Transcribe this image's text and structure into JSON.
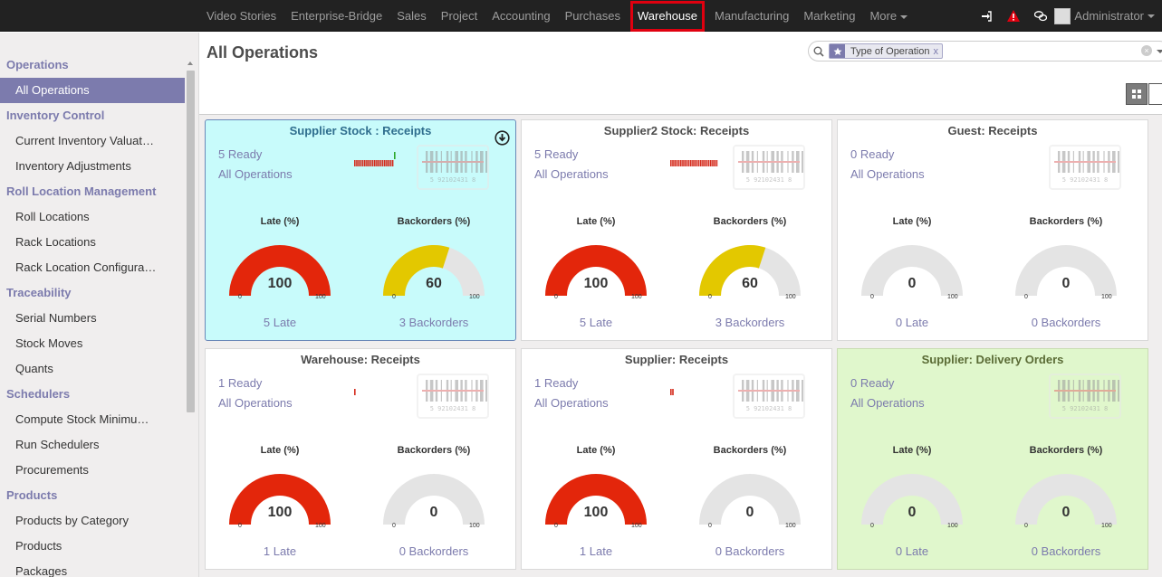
{
  "topbar": {
    "menu": [
      "Video Stories",
      "Enterprise-Bridge",
      "Sales",
      "Project",
      "Accounting",
      "Purchases",
      "Warehouse",
      "Manufacturing",
      "Marketing",
      "More"
    ],
    "active": "Warehouse",
    "user_name": "Administrator",
    "icons": [
      "sign-in-icon",
      "warning-icon",
      "chat-icon"
    ],
    "warning_color": "#e0000f"
  },
  "sidebar": {
    "sections": [
      {
        "title": "Operations",
        "items": [
          "All Operations"
        ]
      },
      {
        "title": "Inventory Control",
        "items": [
          "Current Inventory Valuat…",
          "Inventory Adjustments"
        ]
      },
      {
        "title": "Roll Location Management",
        "items": [
          "Roll Locations",
          "Rack Locations",
          "Rack Location Configura…"
        ]
      },
      {
        "title": "Traceability",
        "items": [
          "Serial Numbers",
          "Stock Moves",
          "Quants"
        ]
      },
      {
        "title": "Schedulers",
        "items": [
          "Compute Stock Minimu…",
          "Run Schedulers",
          "Procurements"
        ]
      },
      {
        "title": "Products",
        "items": [
          "Products by Category",
          "Products",
          "Packages"
        ]
      }
    ],
    "active_item": "All Operations"
  },
  "control_panel": {
    "title": "All Operations",
    "search_facet": "Type of Operation",
    "facet_remove": "x",
    "clear": "×"
  },
  "gauge_labels": {
    "late": "Late (%)",
    "backorders": "Backorders (%)",
    "min": "0",
    "max": "100"
  },
  "cards": [
    {
      "title": "Supplier Stock : Receipts",
      "ready": "5 Ready",
      "all_ops": "All Operations",
      "late_pct": 100,
      "back_pct": 60,
      "late_link": "5 Late",
      "back_link": "3 Backorders",
      "style": "blue",
      "spark": [
        1,
        1,
        1,
        1,
        1,
        1,
        1,
        1,
        1,
        1,
        1,
        1,
        1,
        1,
        1,
        1,
        1,
        1,
        1,
        1,
        2
      ],
      "download": true
    },
    {
      "title": "Supplier2 Stock: Receipts",
      "ready": "5 Ready",
      "all_ops": "All Operations",
      "late_pct": 100,
      "back_pct": 60,
      "late_link": "5 Late",
      "back_link": "3 Backorders",
      "style": "white",
      "spark": [
        1,
        1,
        1,
        1,
        1,
        1,
        1,
        1,
        1,
        1,
        1,
        1,
        1,
        1,
        1,
        1,
        1,
        1,
        1,
        1,
        1,
        1,
        1,
        1
      ],
      "download": false
    },
    {
      "title": "Guest: Receipts",
      "ready": "0 Ready",
      "all_ops": "All Operations",
      "late_pct": 0,
      "back_pct": 0,
      "late_link": "0 Late",
      "back_link": "0 Backorders",
      "style": "white",
      "spark": [],
      "download": false
    },
    {
      "title": "Warehouse: Receipts",
      "ready": "1 Ready",
      "all_ops": "All Operations",
      "late_pct": 100,
      "back_pct": 0,
      "late_link": "1 Late",
      "back_link": "0 Backorders",
      "style": "white",
      "spark": [
        1
      ],
      "download": false
    },
    {
      "title": "Supplier: Receipts",
      "ready": "1 Ready",
      "all_ops": "All Operations",
      "late_pct": 100,
      "back_pct": 0,
      "late_link": "1 Late",
      "back_link": "0 Backorders",
      "style": "white",
      "spark": [
        1,
        1
      ],
      "download": false
    },
    {
      "title": "Supplier: Delivery Orders",
      "ready": "0 Ready",
      "all_ops": "All Operations",
      "late_pct": 0,
      "back_pct": 0,
      "late_link": "0 Late",
      "back_link": "0 Backorders",
      "style": "green",
      "spark": [],
      "download": false
    }
  ],
  "colors": {
    "late": "#e3260b",
    "backorders": "#e3c800",
    "empty": "#e4e4e4",
    "accent": "#7c7bad",
    "spark_red": "#d42a1c",
    "spark_green": "#2ba82b"
  },
  "barcode_text": "5 92102431 8"
}
